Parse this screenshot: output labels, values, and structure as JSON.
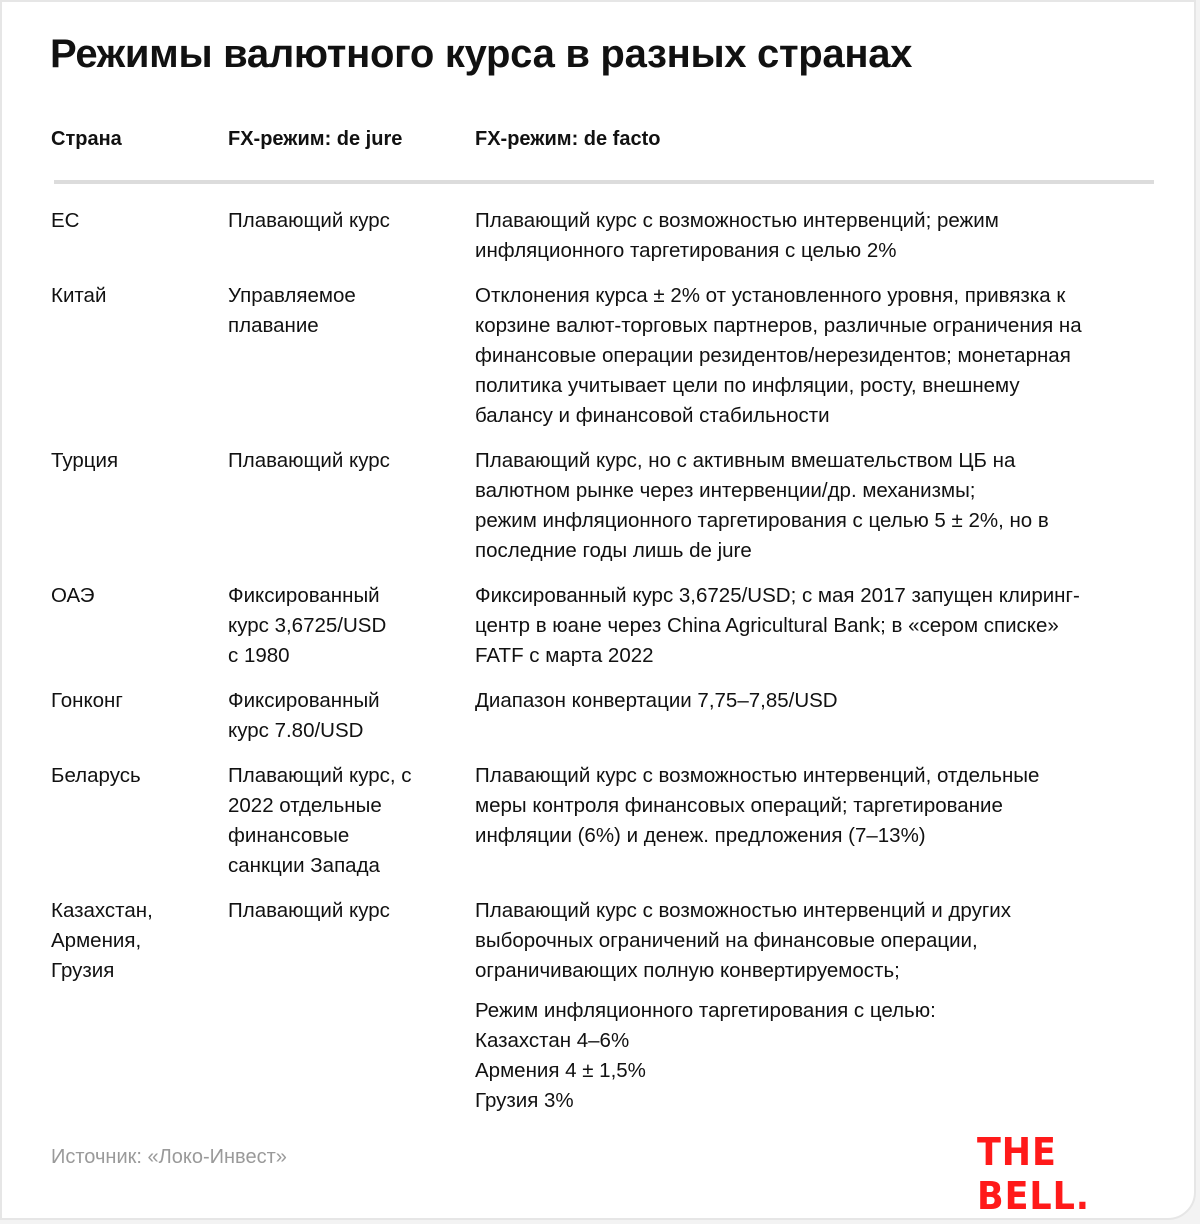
{
  "title": "Режимы валютного курса в разных странах",
  "headers": [
    "Страна",
    "FX-режим: de jure",
    "FX-режим: de facto"
  ],
  "rows": [
    {
      "country": [
        "ЕС"
      ],
      "de_jure": [
        "Плавающий курс"
      ],
      "de_facto": [
        "Плавающий курс с возможностью интервенций; режим",
        "инфляционного таргетирования с целью 2%"
      ]
    },
    {
      "country": [
        "Китай"
      ],
      "de_jure": [
        "Управляемое",
        "плавание"
      ],
      "de_facto": [
        "Отклонения курса ± 2% от установленного уровня, привязка к",
        "корзине валют-торговых партнеров, различные ограничения на",
        "финансовые операции резидентов/нерезидентов; монетарная",
        "политика учитывает цели по инфляции, росту, внешнему",
        "балансу и финансовой стабильности"
      ]
    },
    {
      "country": [
        "Турция"
      ],
      "de_jure": [
        "Плавающий курс"
      ],
      "de_facto": [
        "Плавающий курс, но с активным вмешательством ЦБ на",
        "валютном рынке через интервенции/др. механизмы;",
        "режим инфляционного таргетирования с целью 5 ± 2%, но в",
        "последние годы лишь de jure"
      ]
    },
    {
      "country": [
        "ОАЭ"
      ],
      "de_jure": [
        "Фиксированный",
        "курс 3,6725/USD",
        "с 1980"
      ],
      "de_facto": [
        "Фиксированный курс 3,6725/USD; с мая 2017 запущен клиринг-",
        "центр в юане через China Agricultural Bank; в «сером списке»",
        "FATF с марта 2022"
      ]
    },
    {
      "country": [
        "Гонконг"
      ],
      "de_jure": [
        "Фиксированный",
        "курс 7.80/USD"
      ],
      "de_facto": [
        "Диапазон конвертации 7,75–7,85/USD"
      ]
    },
    {
      "country": [
        "Беларусь"
      ],
      "de_jure": [
        "Плавающий курс, с",
        "2022 отдельные",
        "финансовые",
        "санкции Запада"
      ],
      "de_facto": [
        "Плавающий курс с возможностью интервенций, отдельные",
        "меры контроля финансовых операций; таргетирование",
        "инфляции (6%) и денеж. предложения (7–13%)"
      ]
    },
    {
      "country": [
        "Казахстан,",
        "Армения,",
        "Грузия"
      ],
      "de_jure": [
        "Плавающий курс"
      ],
      "de_facto": [
        "Плавающий курс с возможностью интервенций и других",
        "выборочных ограничений на финансовые операции,",
        "ограничивающих полную конвертируемость;"
      ],
      "de_facto_extra": [
        "Режим инфляционного таргетирования с целью:",
        "Казахстан 4–6%",
        "Армения 4 ± 1,5%",
        "Грузия 3%"
      ]
    }
  ],
  "source": "Источник: «Локо-Инвест»",
  "logo": "THE BELL.",
  "colors": {
    "logo": "#ff1a1a",
    "rule": "#dcdcdc",
    "source": "#9a9a9a"
  }
}
